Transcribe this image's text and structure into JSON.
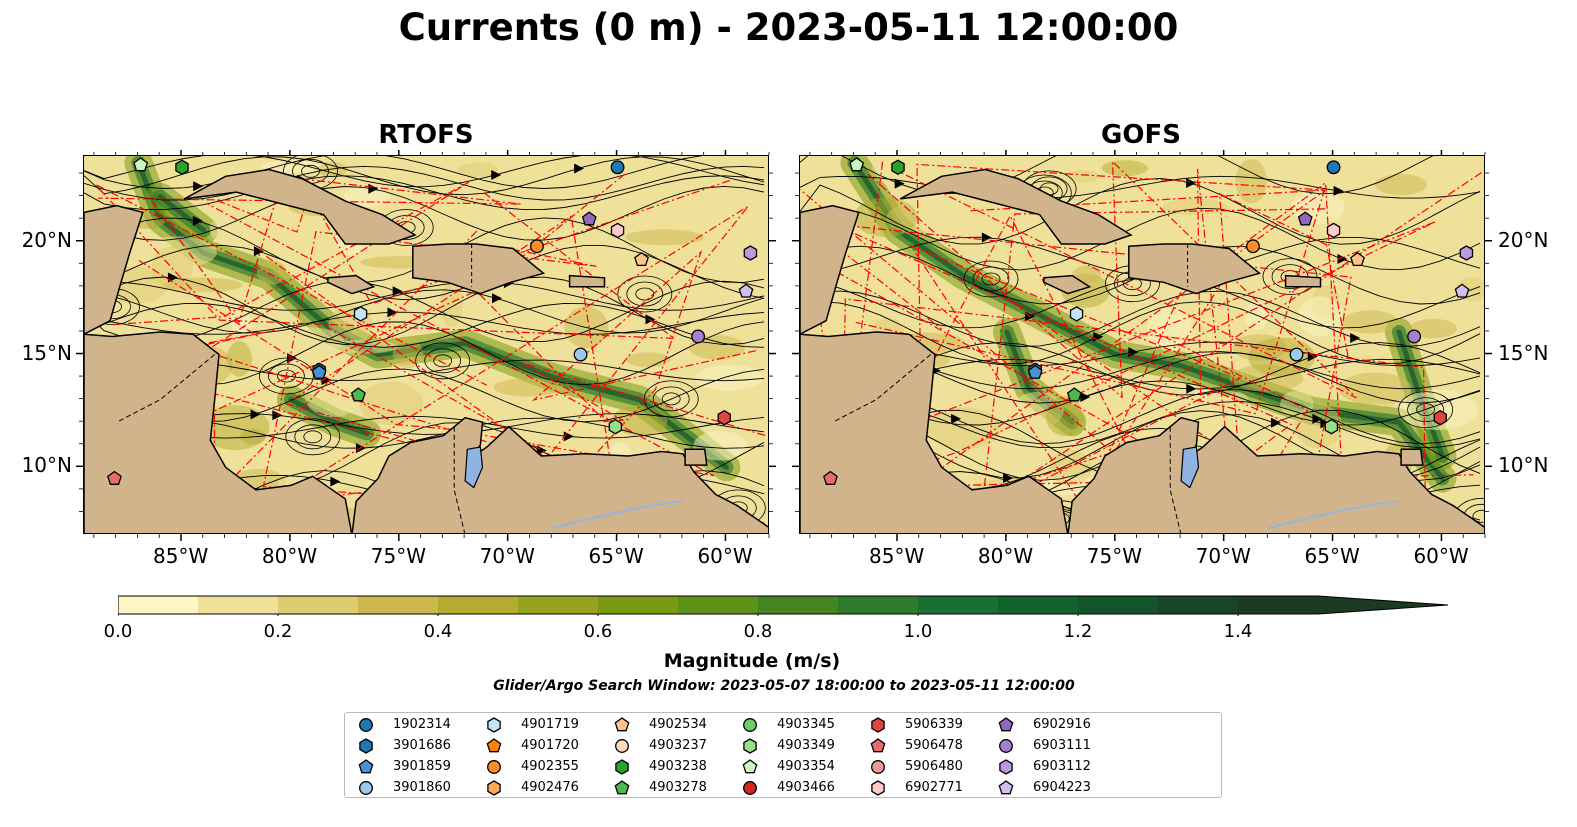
{
  "title": "Currents (0 m) - 2023-05-11 12:00:00",
  "panels": [
    {
      "title": "RTOFS"
    },
    {
      "title": "GOFS"
    }
  ],
  "axes": {
    "lon_labels": [
      "85°W",
      "80°W",
      "75°W",
      "70°W",
      "65°W",
      "60°W"
    ],
    "lat_labels": [
      "20°N",
      "15°N",
      "10°N"
    ],
    "lon_range": [
      -89.5,
      -58
    ],
    "lat_range": [
      7,
      23.8
    ]
  },
  "colorbar": {
    "label": "Magnitude (m/s)",
    "ticks": [
      "0.0",
      "0.2",
      "0.4",
      "0.6",
      "0.8",
      "1.0",
      "1.2",
      "1.4"
    ],
    "range": [
      0,
      1.5
    ],
    "extend": "max",
    "colors": [
      "#fdf5c4",
      "#efe19a",
      "#dfcb72",
      "#cdb74e",
      "#b5ab32",
      "#97a21e",
      "#7a9a14",
      "#5e9118",
      "#448522",
      "#2c7a2a",
      "#197030",
      "#12622e",
      "#14542a",
      "#194527",
      "#1c3a22"
    ]
  },
  "search_window": "Glider/Argo Search Window: 2023-05-07 18:00:00 to 2023-05-11 12:00:00",
  "legend": [
    {
      "label": "1902314",
      "marker": "circle",
      "color": "#1f77b4"
    },
    {
      "label": "3901686",
      "marker": "hexagon",
      "color": "#1f77b4"
    },
    {
      "label": "3901859",
      "marker": "pentagon",
      "color": "#4a90d9"
    },
    {
      "label": "3901860",
      "marker": "circle",
      "color": "#9ec9ef"
    },
    {
      "label": "4901719",
      "marker": "hexagon",
      "color": "#c6e4f7"
    },
    {
      "label": "4901720",
      "marker": "pentagon",
      "color": "#ff7f0e"
    },
    {
      "label": "4902355",
      "marker": "circle",
      "color": "#ff8c2a"
    },
    {
      "label": "4902476",
      "marker": "hexagon",
      "color": "#ffaa55"
    },
    {
      "label": "4902534",
      "marker": "pentagon",
      "color": "#ffc48a"
    },
    {
      "label": "4903237",
      "marker": "circle",
      "color": "#ffdcb8"
    },
    {
      "label": "4903238",
      "marker": "hexagon",
      "color": "#2ca02c"
    },
    {
      "label": "4903278",
      "marker": "pentagon",
      "color": "#4cbb4c"
    },
    {
      "label": "4903345",
      "marker": "circle",
      "color": "#6ccf6c"
    },
    {
      "label": "4903349",
      "marker": "hexagon",
      "color": "#98df8a"
    },
    {
      "label": "4903354",
      "marker": "pentagon",
      "color": "#c8f5c0"
    },
    {
      "label": "4903466",
      "marker": "circle",
      "color": "#d62728"
    },
    {
      "label": "5906339",
      "marker": "hexagon",
      "color": "#e04545"
    },
    {
      "label": "5906478",
      "marker": "pentagon",
      "color": "#ea6a6a"
    },
    {
      "label": "5906480",
      "marker": "circle",
      "color": "#f09a9a"
    },
    {
      "label": "6902771",
      "marker": "hexagon",
      "color": "#ffc9c9"
    },
    {
      "label": "6902916",
      "marker": "pentagon",
      "color": "#9467bd"
    },
    {
      "label": "6903111",
      "marker": "circle",
      "color": "#a67fd0"
    },
    {
      "label": "6903112",
      "marker": "hexagon",
      "color": "#bb9ae0"
    },
    {
      "label": "6904223",
      "marker": "pentagon",
      "color": "#d2bff0"
    }
  ],
  "floats": [
    {
      "id": "1902314",
      "lon": -65.0,
      "lat": 23.3
    },
    {
      "id": "3901686",
      "lon": -78.7,
      "lat": 14.3
    },
    {
      "id": "3901859",
      "lon": -78.7,
      "lat": 14.2
    },
    {
      "id": "3901860",
      "lon": -66.7,
      "lat": 15.0
    },
    {
      "id": "4901719",
      "lon": -76.8,
      "lat": 16.8
    },
    {
      "id": "4902355",
      "lon": -68.7,
      "lat": 19.8
    },
    {
      "id": "4902534",
      "lon": -63.9,
      "lat": 19.2
    },
    {
      "id": "4903238",
      "lon": -85.0,
      "lat": 23.3
    },
    {
      "id": "4903278",
      "lon": -76.9,
      "lat": 13.2
    },
    {
      "id": "4903349",
      "lon": -65.1,
      "lat": 11.8
    },
    {
      "id": "4903354",
      "lon": -86.9,
      "lat": 23.4
    },
    {
      "id": "5906339",
      "lon": -60.1,
      "lat": 12.2
    },
    {
      "id": "5906478",
      "lon": -88.1,
      "lat": 9.5
    },
    {
      "id": "6902771",
      "lon": -65.0,
      "lat": 20.5
    },
    {
      "id": "6902916",
      "lon": -66.3,
      "lat": 21.0
    },
    {
      "id": "6903111",
      "lon": -61.3,
      "lat": 15.8
    },
    {
      "id": "6903112",
      "lon": -58.9,
      "lat": 19.5
    },
    {
      "id": "6904223",
      "lon": -59.1,
      "lat": 17.8
    }
  ]
}
